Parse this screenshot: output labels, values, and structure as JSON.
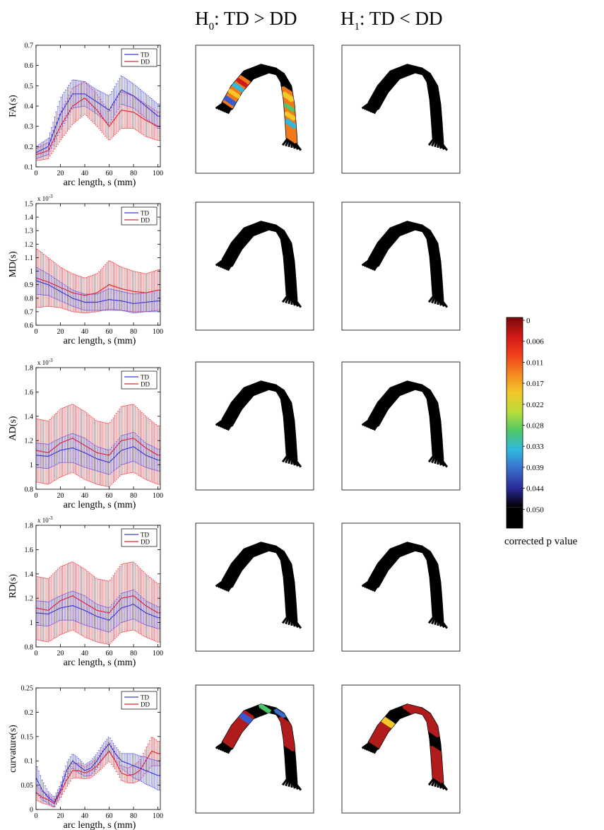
{
  "headers": [
    {
      "main": "H",
      "sub": "0",
      "rest": ": TD > DD"
    },
    {
      "main": "H",
      "sub": "1",
      "rest": ": TD < DD"
    }
  ],
  "colors": {
    "td": "#3a3ad8",
    "dd": "#e8232d",
    "tract": "#000000"
  },
  "legend_labels": [
    "TD",
    "DD"
  ],
  "xlabel": "arc length, s (mm)",
  "chart_data": [
    {
      "type": "line",
      "ylabel": "FA(s)",
      "xlim": [
        0,
        102
      ],
      "ylim": [
        0.1,
        0.7
      ],
      "yticks": [
        "0.1",
        "0.2",
        "0.3",
        "0.4",
        "0.5",
        "0.6",
        "0.7"
      ],
      "ytick_values": [
        0.1,
        0.2,
        0.3,
        0.4,
        0.5,
        0.6,
        0.7
      ],
      "xticks": [
        "0",
        "20",
        "40",
        "60",
        "80",
        "100"
      ],
      "multiplier": "",
      "x": [
        0,
        10,
        20,
        30,
        40,
        50,
        60,
        70,
        80,
        90,
        100
      ],
      "series": [
        {
          "name": "TD",
          "mean": [
            0.17,
            0.2,
            0.36,
            0.46,
            0.46,
            0.42,
            0.38,
            0.48,
            0.45,
            0.4,
            0.35
          ],
          "sd": [
            0.03,
            0.04,
            0.08,
            0.07,
            0.06,
            0.06,
            0.07,
            0.07,
            0.06,
            0.06,
            0.06
          ]
        },
        {
          "name": "DD",
          "mean": [
            0.16,
            0.18,
            0.3,
            0.4,
            0.44,
            0.38,
            0.3,
            0.38,
            0.37,
            0.33,
            0.3
          ],
          "sd": [
            0.03,
            0.04,
            0.07,
            0.09,
            0.08,
            0.08,
            0.07,
            0.09,
            0.08,
            0.08,
            0.07
          ]
        }
      ]
    },
    {
      "type": "line",
      "ylabel": "MD(s)",
      "xlim": [
        0,
        102
      ],
      "ylim": [
        0.6,
        1.5
      ],
      "yticks": [
        "0.6",
        "0.7",
        "0.8",
        "0.9",
        "1",
        "1.1",
        "1.2",
        "1.3",
        "1.4",
        "1.5"
      ],
      "ytick_values": [
        0.6,
        0.7,
        0.8,
        0.9,
        1.0,
        1.1,
        1.2,
        1.3,
        1.4,
        1.5
      ],
      "xticks": [
        "0",
        "20",
        "40",
        "60",
        "80",
        "100"
      ],
      "multiplier": "x 10",
      "x": [
        0,
        10,
        20,
        30,
        40,
        50,
        60,
        70,
        80,
        90,
        100
      ],
      "series": [
        {
          "name": "TD",
          "mean": [
            0.93,
            0.9,
            0.85,
            0.8,
            0.77,
            0.77,
            0.79,
            0.78,
            0.76,
            0.77,
            0.78
          ],
          "sd": [
            0.1,
            0.08,
            0.07,
            0.06,
            0.06,
            0.06,
            0.08,
            0.07,
            0.07,
            0.07,
            0.08
          ]
        },
        {
          "name": "DD",
          "mean": [
            0.95,
            0.92,
            0.88,
            0.84,
            0.82,
            0.84,
            0.9,
            0.87,
            0.85,
            0.84,
            0.86
          ],
          "sd": [
            0.22,
            0.18,
            0.15,
            0.14,
            0.13,
            0.14,
            0.18,
            0.16,
            0.15,
            0.14,
            0.15
          ]
        }
      ]
    },
    {
      "type": "line",
      "ylabel": "AD(s)",
      "xlim": [
        0,
        102
      ],
      "ylim": [
        0.8,
        1.8
      ],
      "yticks": [
        "0.8",
        "1",
        "1.2",
        "1.4",
        "1.6",
        "1.8"
      ],
      "ytick_values": [
        0.8,
        1.0,
        1.2,
        1.4,
        1.6,
        1.8
      ],
      "xticks": [
        "0",
        "20",
        "40",
        "60",
        "80",
        "100"
      ],
      "multiplier": "x 10",
      "x": [
        0,
        10,
        20,
        30,
        40,
        50,
        60,
        70,
        80,
        90,
        100
      ],
      "series": [
        {
          "name": "TD",
          "mean": [
            1.08,
            1.07,
            1.12,
            1.14,
            1.1,
            1.05,
            1.02,
            1.12,
            1.15,
            1.08,
            1.04
          ],
          "sd": [
            0.1,
            0.1,
            0.1,
            0.12,
            0.12,
            0.1,
            0.1,
            0.12,
            0.12,
            0.1,
            0.09
          ]
        },
        {
          "name": "DD",
          "mean": [
            1.12,
            1.1,
            1.18,
            1.22,
            1.16,
            1.1,
            1.08,
            1.2,
            1.22,
            1.14,
            1.08
          ],
          "sd": [
            0.26,
            0.26,
            0.28,
            0.28,
            0.28,
            0.26,
            0.26,
            0.28,
            0.28,
            0.26,
            0.24
          ]
        }
      ]
    },
    {
      "type": "line",
      "ylabel": "RD(s)",
      "xlim": [
        0,
        102
      ],
      "ylim": [
        0.8,
        1.8
      ],
      "yticks": [
        "0.8",
        "1",
        "1.2",
        "1.4",
        "1.6",
        "1.8"
      ],
      "ytick_values": [
        0.8,
        1.0,
        1.2,
        1.4,
        1.6,
        1.8
      ],
      "xticks": [
        "0",
        "20",
        "40",
        "60",
        "80",
        "100"
      ],
      "multiplier": "x 10",
      "x": [
        0,
        10,
        20,
        30,
        40,
        50,
        60,
        70,
        80,
        90,
        100
      ],
      "series": [
        {
          "name": "TD",
          "mean": [
            1.08,
            1.07,
            1.12,
            1.14,
            1.1,
            1.05,
            1.02,
            1.12,
            1.15,
            1.08,
            1.04
          ],
          "sd": [
            0.1,
            0.1,
            0.1,
            0.12,
            0.12,
            0.1,
            0.1,
            0.12,
            0.12,
            0.1,
            0.09
          ]
        },
        {
          "name": "DD",
          "mean": [
            1.12,
            1.1,
            1.18,
            1.22,
            1.16,
            1.1,
            1.08,
            1.2,
            1.22,
            1.14,
            1.08
          ],
          "sd": [
            0.26,
            0.26,
            0.28,
            0.28,
            0.28,
            0.26,
            0.26,
            0.28,
            0.28,
            0.26,
            0.24
          ]
        }
      ]
    },
    {
      "type": "line",
      "ylabel": "curvature(s)",
      "xlim": [
        0,
        102
      ],
      "ylim": [
        0,
        0.25
      ],
      "yticks": [
        "0",
        "0.05",
        "0.1",
        "0.15",
        "0.2",
        "0.25"
      ],
      "ytick_values": [
        0,
        0.05,
        0.1,
        0.15,
        0.2,
        0.25
      ],
      "xticks": [
        "0",
        "20",
        "40",
        "60",
        "80",
        "100"
      ],
      "multiplier": "",
      "x": [
        0,
        5,
        10,
        15,
        20,
        25,
        30,
        35,
        40,
        45,
        50,
        55,
        60,
        65,
        70,
        75,
        80,
        85,
        90,
        95,
        100
      ],
      "series": [
        {
          "name": "TD",
          "mean": [
            0.065,
            0.04,
            0.025,
            0.015,
            0.04,
            0.08,
            0.1,
            0.09,
            0.08,
            0.085,
            0.1,
            0.12,
            0.135,
            0.115,
            0.1,
            0.095,
            0.09,
            0.085,
            0.08,
            0.075,
            0.07
          ],
          "sd": [
            0.03,
            0.02,
            0.012,
            0.01,
            0.012,
            0.015,
            0.015,
            0.015,
            0.012,
            0.015,
            0.015,
            0.015,
            0.015,
            0.015,
            0.015,
            0.02,
            0.025,
            0.025,
            0.028,
            0.028,
            0.03
          ]
        },
        {
          "name": "DD",
          "mean": [
            0.035,
            0.025,
            0.02,
            0.012,
            0.035,
            0.06,
            0.08,
            0.08,
            0.075,
            0.08,
            0.09,
            0.105,
            0.12,
            0.1,
            0.075,
            0.07,
            0.072,
            0.08,
            0.1,
            0.12,
            0.115
          ],
          "sd": [
            0.015,
            0.012,
            0.01,
            0.008,
            0.012,
            0.015,
            0.015,
            0.015,
            0.012,
            0.015,
            0.015,
            0.018,
            0.02,
            0.018,
            0.015,
            0.015,
            0.018,
            0.02,
            0.025,
            0.03,
            0.025
          ]
        }
      ]
    }
  ],
  "colorbar": {
    "label": "corrected p value",
    "ticks": [
      "0",
      "0.006",
      "0.011",
      "0.017",
      "0.022",
      "0.028",
      "0.033",
      "0.039",
      "0.044",
      "0.050"
    ],
    "stops": [
      "#7a0a0a",
      "#d01818",
      "#f0401a",
      "#f48a20",
      "#f2c82a",
      "#b8dc3a",
      "#4cc868",
      "#30b8e0",
      "#3a6ccc",
      "#2a2a9a",
      "#000000"
    ]
  },
  "tract_panels": [
    {
      "row": 0,
      "col": 0,
      "overlay": [
        {
          "t0": 0.0,
          "t1": 0.22,
          "color": "#f07a1a"
        },
        {
          "t0": 0.02,
          "t1": 0.05,
          "color": "#3a5ad0"
        },
        {
          "t0": 0.08,
          "t1": 0.1,
          "color": "#f2c82a"
        },
        {
          "t0": 0.13,
          "t1": 0.15,
          "color": "#30b8e0"
        },
        {
          "t0": 0.17,
          "t1": 0.19,
          "color": "#d01818"
        },
        {
          "t0": 0.66,
          "t1": 1.0,
          "color": "#f07a1a"
        },
        {
          "t0": 0.7,
          "t1": 0.73,
          "color": "#f2c82a"
        },
        {
          "t0": 0.78,
          "t1": 0.8,
          "color": "#4cc868"
        },
        {
          "t0": 0.84,
          "t1": 0.86,
          "color": "#f2c82a"
        },
        {
          "t0": 0.89,
          "t1": 0.91,
          "color": "#30b8e0"
        }
      ]
    },
    {
      "row": 0,
      "col": 1,
      "overlay": []
    },
    {
      "row": 1,
      "col": 0,
      "overlay": []
    },
    {
      "row": 1,
      "col": 1,
      "overlay": []
    },
    {
      "row": 2,
      "col": 0,
      "overlay": []
    },
    {
      "row": 2,
      "col": 1,
      "overlay": []
    },
    {
      "row": 3,
      "col": 0,
      "overlay": []
    },
    {
      "row": 3,
      "col": 1,
      "overlay": []
    },
    {
      "row": 4,
      "col": 0,
      "overlay": [
        {
          "t0": 0.0,
          "t1": 0.26,
          "color": "#b01c1c"
        },
        {
          "t0": 0.2,
          "t1": 0.24,
          "color": "#3a5ad0"
        },
        {
          "t0": 0.36,
          "t1": 0.39,
          "color": "#4cc868"
        },
        {
          "t0": 0.5,
          "t1": 0.53,
          "color": "#3a6ccc"
        },
        {
          "t0": 0.58,
          "t1": 0.8,
          "color": "#b01c1c"
        }
      ]
    },
    {
      "row": 4,
      "col": 1,
      "overlay": [
        {
          "t0": 0.0,
          "t1": 0.16,
          "color": "#b01c1c"
        },
        {
          "t0": 0.16,
          "t1": 0.2,
          "color": "#f2c82a"
        },
        {
          "t0": 0.34,
          "t1": 0.7,
          "color": "#b01c1c"
        },
        {
          "t0": 0.8,
          "t1": 1.0,
          "color": "#b01c1c"
        }
      ]
    }
  ]
}
